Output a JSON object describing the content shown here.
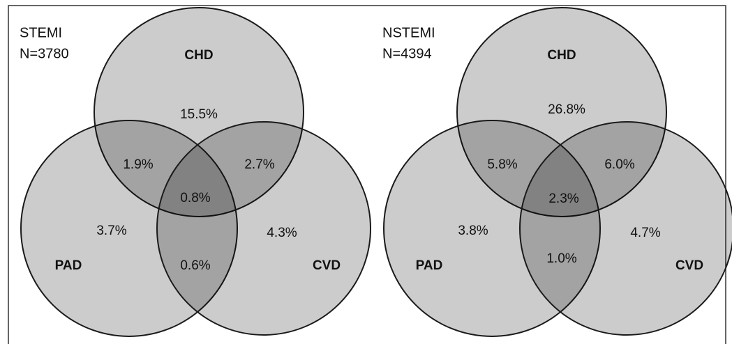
{
  "panels": [
    {
      "title": "STEMI",
      "n": "N=3780",
      "sets": [
        "CHD",
        "PAD",
        "CVD"
      ],
      "regions": {
        "chd_only": "15.5%",
        "chd_pad": "1.9%",
        "chd_cvd": "2.7%",
        "all": "0.8%",
        "pad_only": "3.7%",
        "cvd_only": "4.3%",
        "pad_cvd": "0.6%"
      }
    },
    {
      "title": "NSTEMI",
      "n": "N=4394",
      "sets": [
        "CHD",
        "PAD",
        "CVD"
      ],
      "regions": {
        "chd_only": "26.8%",
        "chd_pad": "5.8%",
        "chd_cvd": "6.0%",
        "all": "2.3%",
        "pad_only": "3.8%",
        "cvd_only": "4.7%",
        "pad_cvd": "1.0%"
      }
    }
  ]
}
